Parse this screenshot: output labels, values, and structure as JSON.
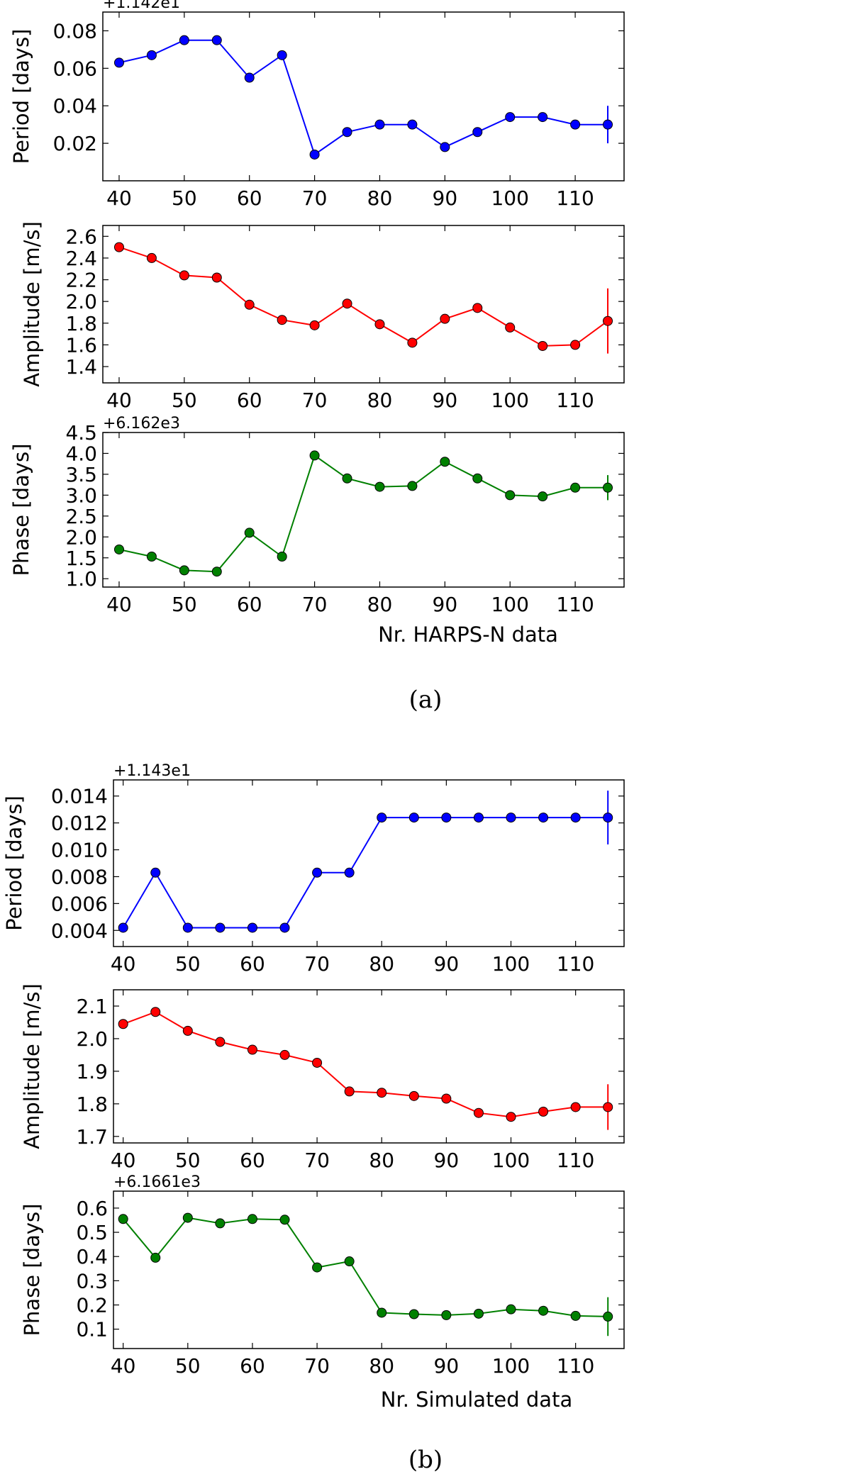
{
  "figure": {
    "caption_a": "(a)",
    "caption_b": "(b)",
    "xlabel_a": "Nr. HARPS-N data",
    "xlabel_b": "Nr. Simulated data"
  },
  "chart_data": [
    {
      "type": "line",
      "id": "a-period",
      "title": "",
      "xlabel": "",
      "ylabel": "Period [days]",
      "offset_text": "+1.142e1",
      "color": "#0000ff",
      "x": [
        40,
        45,
        50,
        55,
        60,
        65,
        70,
        75,
        80,
        85,
        90,
        95,
        100,
        105,
        110,
        115
      ],
      "values": [
        0.063,
        0.067,
        0.075,
        0.075,
        0.055,
        0.067,
        0.014,
        0.026,
        0.03,
        0.03,
        0.018,
        0.026,
        0.034,
        0.034,
        0.03,
        0.03
      ],
      "last_error": 0.01,
      "xlim": [
        37.5,
        117.5
      ],
      "xticks": [
        40,
        50,
        60,
        70,
        80,
        90,
        100,
        110
      ],
      "ylim": [
        0.0,
        0.09
      ],
      "yticks": [
        0.02,
        0.04,
        0.06,
        0.08
      ],
      "ytick_labels": [
        "0.02",
        "0.04",
        "0.06",
        "0.08"
      ],
      "grid": false
    },
    {
      "type": "line",
      "id": "a-amplitude",
      "title": "",
      "xlabel": "",
      "ylabel": "Amplitude [m/s]",
      "offset_text": "",
      "color": "#ff0000",
      "x": [
        40,
        45,
        50,
        55,
        60,
        65,
        70,
        75,
        80,
        85,
        90,
        95,
        100,
        105,
        110,
        115
      ],
      "values": [
        2.5,
        2.4,
        2.24,
        2.22,
        1.97,
        1.83,
        1.78,
        1.98,
        1.79,
        1.62,
        1.84,
        1.94,
        1.76,
        1.59,
        1.6,
        1.82
      ],
      "last_error": 0.3,
      "xlim": [
        37.5,
        117.5
      ],
      "xticks": [
        40,
        50,
        60,
        70,
        80,
        90,
        100,
        110
      ],
      "ylim": [
        1.25,
        2.7
      ],
      "yticks": [
        1.4,
        1.6,
        1.8,
        2.0,
        2.2,
        2.4,
        2.6
      ],
      "ytick_labels": [
        "1.4",
        "1.6",
        "1.8",
        "2.0",
        "2.2",
        "2.4",
        "2.6"
      ],
      "grid": false
    },
    {
      "type": "line",
      "id": "a-phase",
      "title": "",
      "xlabel": "Nr. HARPS-N data",
      "ylabel": "Phase [days]",
      "offset_text": "+6.162e3",
      "color": "#008000",
      "x": [
        40,
        45,
        50,
        55,
        60,
        65,
        70,
        75,
        80,
        85,
        90,
        95,
        100,
        105,
        110,
        115
      ],
      "values": [
        1.7,
        1.53,
        1.2,
        1.17,
        2.1,
        1.53,
        3.95,
        3.4,
        3.2,
        3.22,
        3.8,
        3.4,
        3.0,
        2.97,
        3.18,
        3.18
      ],
      "last_error": 0.3,
      "xlim": [
        37.5,
        117.5
      ],
      "xticks": [
        40,
        50,
        60,
        70,
        80,
        90,
        100,
        110
      ],
      "ylim": [
        0.8,
        4.5
      ],
      "yticks": [
        1.0,
        1.5,
        2.0,
        2.5,
        3.0,
        3.5,
        4.0,
        4.5
      ],
      "ytick_labels": [
        "1.0",
        "1.5",
        "2.0",
        "2.5",
        "3.0",
        "3.5",
        "4.0",
        "4.5"
      ],
      "grid": false
    },
    {
      "type": "line",
      "id": "b-period",
      "title": "",
      "xlabel": "",
      "ylabel": "Period [days]",
      "offset_text": "+1.143e1",
      "color": "#0000ff",
      "x": [
        40,
        45,
        50,
        55,
        60,
        65,
        70,
        75,
        80,
        85,
        90,
        95,
        100,
        105,
        110,
        115
      ],
      "values": [
        0.0042,
        0.0083,
        0.0042,
        0.0042,
        0.0042,
        0.0042,
        0.0083,
        0.0083,
        0.0124,
        0.0124,
        0.0124,
        0.0124,
        0.0124,
        0.0124,
        0.0124,
        0.0124
      ],
      "last_error": 0.002,
      "xlim": [
        38.5,
        117.5
      ],
      "xticks": [
        40,
        50,
        60,
        70,
        80,
        90,
        100,
        110
      ],
      "ylim": [
        0.0028,
        0.0152
      ],
      "yticks": [
        0.004,
        0.006,
        0.008,
        0.01,
        0.012,
        0.014
      ],
      "ytick_labels": [
        "0.004",
        "0.006",
        "0.008",
        "0.010",
        "0.012",
        "0.014"
      ],
      "grid": false
    },
    {
      "type": "line",
      "id": "b-amplitude",
      "title": "",
      "xlabel": "",
      "ylabel": "Amplitude [m/s]",
      "offset_text": "",
      "color": "#ff0000",
      "x": [
        40,
        45,
        50,
        55,
        60,
        65,
        70,
        75,
        80,
        85,
        90,
        95,
        100,
        105,
        110,
        115
      ],
      "values": [
        2.045,
        2.082,
        2.024,
        1.99,
        1.966,
        1.95,
        1.926,
        1.838,
        1.834,
        1.824,
        1.816,
        1.772,
        1.76,
        1.776,
        1.79,
        1.79
      ],
      "last_error": 0.07,
      "xlim": [
        38.5,
        117.5
      ],
      "xticks": [
        40,
        50,
        60,
        70,
        80,
        90,
        100,
        110
      ],
      "ylim": [
        1.68,
        2.15
      ],
      "yticks": [
        1.7,
        1.8,
        1.9,
        2.0,
        2.1
      ],
      "ytick_labels": [
        "1.7",
        "1.8",
        "1.9",
        "2.0",
        "2.1"
      ],
      "grid": false
    },
    {
      "type": "line",
      "id": "b-phase",
      "title": "",
      "xlabel": "Nr. Simulated data",
      "ylabel": "Phase [days]",
      "offset_text": "+6.1661e3",
      "color": "#008000",
      "x": [
        40,
        45,
        50,
        55,
        60,
        65,
        70,
        75,
        80,
        85,
        90,
        95,
        100,
        105,
        110,
        115
      ],
      "values": [
        0.555,
        0.395,
        0.56,
        0.537,
        0.555,
        0.552,
        0.355,
        0.38,
        0.168,
        0.162,
        0.158,
        0.164,
        0.182,
        0.176,
        0.155,
        0.152
      ],
      "last_error": 0.08,
      "xlim": [
        38.5,
        117.5
      ],
      "xticks": [
        40,
        50,
        60,
        70,
        80,
        90,
        100,
        110
      ],
      "ylim": [
        0.02,
        0.67
      ],
      "yticks": [
        0.1,
        0.2,
        0.3,
        0.4,
        0.5,
        0.6
      ],
      "ytick_labels": [
        "0.1",
        "0.2",
        "0.3",
        "0.4",
        "0.5",
        "0.6"
      ],
      "grid": false
    }
  ]
}
